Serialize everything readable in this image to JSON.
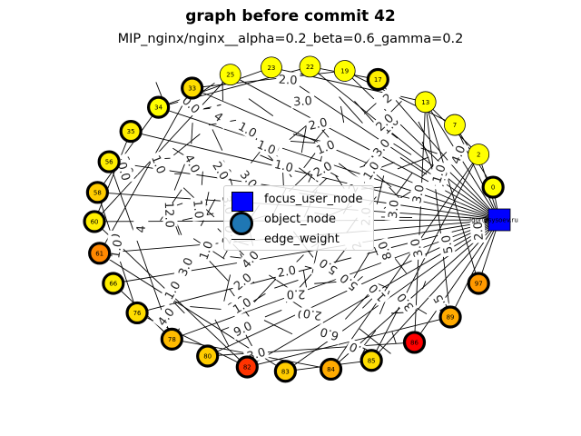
{
  "title": "graph before commit 42",
  "subtitle": "MIP_nginx/nginx__alpha=0.2_beta=0.6_gamma=0.2",
  "legend": {
    "focus": "focus_user_node",
    "object": "object_node",
    "edge": "edge_weight"
  },
  "focus_node": {
    "label": "igor@sysoev.ru",
    "color": "#0000ff"
  },
  "nodes": [
    {
      "id": "0",
      "fill": "#ffff00",
      "ring": true
    },
    {
      "id": "2",
      "fill": "#ffff00",
      "ring": false
    },
    {
      "id": "7",
      "fill": "#ffff00",
      "ring": false
    },
    {
      "id": "13",
      "fill": "#ffff00",
      "ring": false
    },
    {
      "id": "17",
      "fill": "#ffee00",
      "ring": true
    },
    {
      "id": "19",
      "fill": "#ffff00",
      "ring": false
    },
    {
      "id": "22",
      "fill": "#ffff00",
      "ring": false
    },
    {
      "id": "23",
      "fill": "#ffff00",
      "ring": false
    },
    {
      "id": "25",
      "fill": "#ffff00",
      "ring": false
    },
    {
      "id": "33",
      "fill": "#ffdd00",
      "ring": true
    },
    {
      "id": "34",
      "fill": "#ffff00",
      "ring": true
    },
    {
      "id": "35",
      "fill": "#ffee00",
      "ring": true
    },
    {
      "id": "56",
      "fill": "#ffee00",
      "ring": true
    },
    {
      "id": "58",
      "fill": "#ffcc00",
      "ring": true
    },
    {
      "id": "60",
      "fill": "#ffee00",
      "ring": true
    },
    {
      "id": "61",
      "fill": "#ff8800",
      "ring": true
    },
    {
      "id": "66",
      "fill": "#ffee00",
      "ring": true
    },
    {
      "id": "76",
      "fill": "#ffdd00",
      "ring": true
    },
    {
      "id": "78",
      "fill": "#ffbb00",
      "ring": true
    },
    {
      "id": "80",
      "fill": "#ffcc00",
      "ring": true
    },
    {
      "id": "82",
      "fill": "#ff3300",
      "ring": true
    },
    {
      "id": "83",
      "fill": "#ffcc00",
      "ring": true
    },
    {
      "id": "84",
      "fill": "#ffaa00",
      "ring": true
    },
    {
      "id": "85",
      "fill": "#ffdd00",
      "ring": true
    },
    {
      "id": "86",
      "fill": "#ff0000",
      "ring": true
    },
    {
      "id": "89",
      "fill": "#ffaa00",
      "ring": true
    },
    {
      "id": "97",
      "fill": "#ff9900",
      "ring": true
    }
  ],
  "edge_labels": [
    "2.0",
    "0.0",
    "2.0",
    "1.0",
    "1.0",
    "5.0",
    "2.0",
    "3.0",
    "7.0",
    "1.0",
    "1.0",
    "1.0",
    "3.0",
    "5.0",
    "0.0",
    "2.0",
    "1.0",
    "12.0",
    "3.0",
    "2.0",
    "4.0",
    "3.0",
    "4.0",
    "6.0",
    "2",
    "2.0",
    "8.0",
    "1.0",
    "9.0",
    "4.0",
    "3.0",
    "5.0",
    "2.0",
    "1.0",
    "2.0",
    "3.0",
    "2.0",
    "3.0",
    "4",
    "1.5",
    "1.0",
    "2.0",
    "3.0",
    "1.0",
    "1.0",
    "2.0",
    "1.0",
    "3.0",
    "4",
    "3.0",
    "2",
    "1.0",
    "1.0",
    "3.0",
    "4.0",
    "2.0",
    "2.0",
    "2.0",
    "2.0",
    "1.0",
    "2",
    "1.0",
    "1.0",
    "1.0",
    "0.0",
    "5.0"
  ]
}
